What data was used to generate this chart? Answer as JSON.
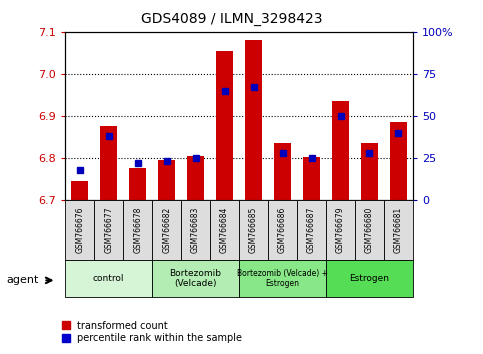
{
  "title": "GDS4089 / ILMN_3298423",
  "samples": [
    "GSM766676",
    "GSM766677",
    "GSM766678",
    "GSM766682",
    "GSM766683",
    "GSM766684",
    "GSM766685",
    "GSM766686",
    "GSM766687",
    "GSM766679",
    "GSM766680",
    "GSM766681"
  ],
  "red_values": [
    6.745,
    6.875,
    6.775,
    6.795,
    6.805,
    7.055,
    7.08,
    6.835,
    6.802,
    6.935,
    6.835,
    6.885
  ],
  "blue_values_pct": [
    18,
    38,
    22,
    23,
    25,
    65,
    67,
    28,
    25,
    50,
    28,
    40
  ],
  "ylim_left": [
    6.7,
    7.1
  ],
  "ylim_right": [
    0,
    100
  ],
  "yticks_left": [
    6.7,
    6.8,
    6.9,
    7.0,
    7.1
  ],
  "yticks_right": [
    0,
    25,
    50,
    75,
    100
  ],
  "ytick_labels_right": [
    "0",
    "25",
    "50",
    "75",
    "100%"
  ],
  "groups": [
    {
      "label": "control",
      "start": 0,
      "end": 3,
      "color": "#d6f5d6"
    },
    {
      "label": "Bortezomib\n(Velcade)",
      "start": 3,
      "end": 6,
      "color": "#b3edb3"
    },
    {
      "label": "Bortezomib (Velcade) +\nEstrogen",
      "start": 6,
      "end": 9,
      "color": "#88e888"
    },
    {
      "label": "Estrogen",
      "start": 9,
      "end": 12,
      "color": "#55dd55"
    }
  ],
  "legend_labels": [
    "transformed count",
    "percentile rank within the sample"
  ],
  "legend_colors": [
    "#cc0000",
    "#0000cc"
  ],
  "bar_color": "#cc0000",
  "blue_color": "#0000bb",
  "base_value": 6.7,
  "agent_label": "agent",
  "background_color": "#ffffff",
  "plot_bg": "#ffffff",
  "tick_color_left": "#cc0000",
  "tick_color_right": "#0000bb",
  "xlabel_box_color": "#dddddd",
  "grid_linestyle": "dotted"
}
